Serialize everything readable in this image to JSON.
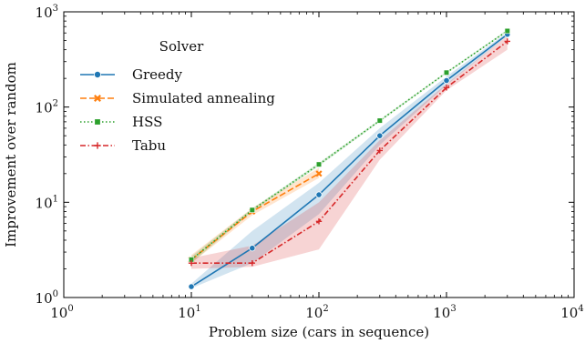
{
  "chart_data": {
    "type": "line",
    "xlabel": "Problem size (cars in sequence)",
    "ylabel": "Improvement over random",
    "xscale": "log",
    "yscale": "log",
    "xlim": [
      1,
      10000
    ],
    "ylim": [
      1,
      1000
    ],
    "xticks": [
      {
        "value": 1,
        "base": "10",
        "exp": "0"
      },
      {
        "value": 10,
        "base": "10",
        "exp": "1"
      },
      {
        "value": 100,
        "base": "10",
        "exp": "2"
      },
      {
        "value": 1000,
        "base": "10",
        "exp": "3"
      },
      {
        "value": 10000,
        "base": "10",
        "exp": "4"
      }
    ],
    "yticks": [
      {
        "value": 1,
        "base": "10",
        "exp": "0"
      },
      {
        "value": 10,
        "base": "10",
        "exp": "1"
      },
      {
        "value": 100,
        "base": "10",
        "exp": "2"
      },
      {
        "value": 1000,
        "base": "10",
        "exp": "3"
      }
    ],
    "grid": false,
    "legend": {
      "title": "Solver",
      "position": "upper-left"
    },
    "series": [
      {
        "name": "Greedy",
        "color": "#1f77b4",
        "linestyle": "solid",
        "marker": "circle",
        "x": [
          10,
          30,
          100,
          300,
          1000,
          3000
        ],
        "y": [
          1.3,
          3.3,
          12,
          50,
          190,
          580
        ],
        "ci_low": [
          1.25,
          2.3,
          7.5,
          40,
          170,
          560
        ],
        "ci_high": [
          1.4,
          5.0,
          16,
          60,
          210,
          610
        ]
      },
      {
        "name": "Simulated annealing",
        "color": "#ff7f0e",
        "linestyle": "dashed",
        "marker": "x",
        "x": [
          10,
          30,
          100
        ],
        "y": [
          2.5,
          8,
          20
        ],
        "ci_low": [
          2.3,
          7.3,
          18
        ],
        "ci_high": [
          2.8,
          8.7,
          23
        ]
      },
      {
        "name": "HSS",
        "color": "#2ca02c",
        "linestyle": "dotted",
        "marker": "square",
        "x": [
          10,
          30,
          100,
          300,
          1000,
          3000
        ],
        "y": [
          2.5,
          8.3,
          25,
          72,
          230,
          630
        ],
        "ci_low": [
          2.3,
          8.0,
          24,
          70,
          225,
          620
        ],
        "ci_high": [
          2.7,
          8.6,
          26,
          74,
          235,
          650
        ]
      },
      {
        "name": "Tabu",
        "color": "#d62728",
        "linestyle": "dashdot",
        "marker": "plus",
        "x": [
          10,
          30,
          100,
          300,
          1000,
          3000
        ],
        "y": [
          2.3,
          2.3,
          6.3,
          35,
          160,
          490
        ],
        "ci_low": [
          2.0,
          2.1,
          3.2,
          28,
          150,
          400
        ],
        "ci_high": [
          2.6,
          3.5,
          10,
          45,
          175,
          560
        ]
      }
    ]
  }
}
